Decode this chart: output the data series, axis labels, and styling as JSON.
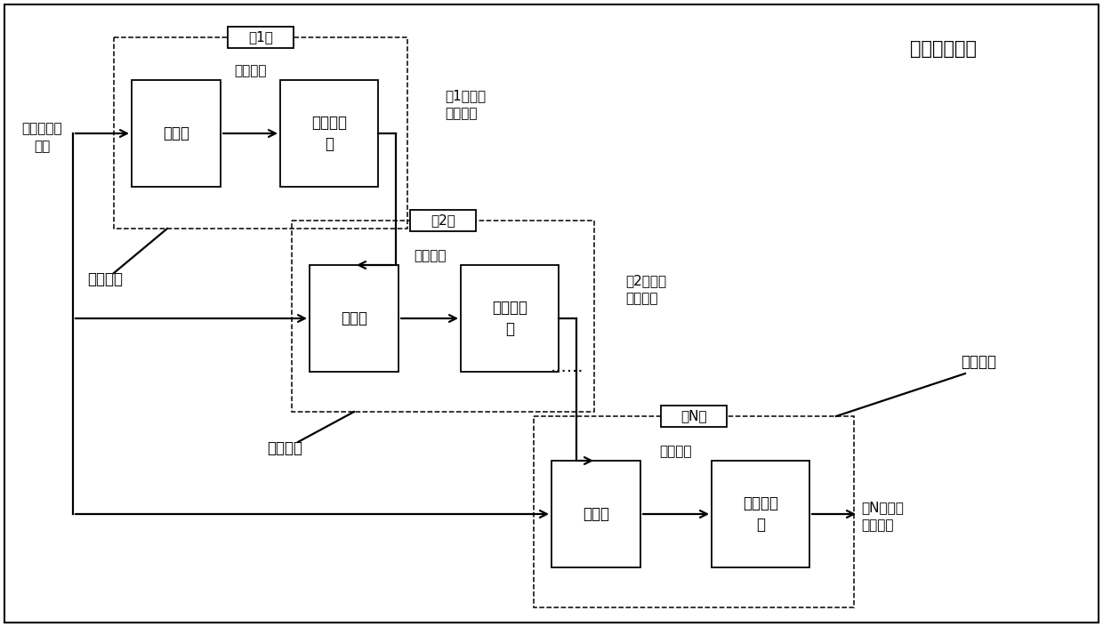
{
  "title": "频率估计装置",
  "bg_color": "#ffffff",
  "box_color": "#ffffff",
  "box_edge": "#000000",
  "text_color": "#000000",
  "level1_label": "第1级",
  "level2_label": "第2级",
  "levelN_label": "第N级",
  "scanner_label": "扫频器",
  "estimator_label": "频率估计\n器",
  "freq_info_label": "频点信息",
  "input_label": "含噪连续波\n信号",
  "unit_label": "扫频单元",
  "result1_label": "第1级频率\n估计结果",
  "result2_label": "第2级频率\n估计结果",
  "resultN_label": "第N级频率\n估计结果",
  "dots_label": "......",
  "font_size": 12,
  "small_font": 11
}
